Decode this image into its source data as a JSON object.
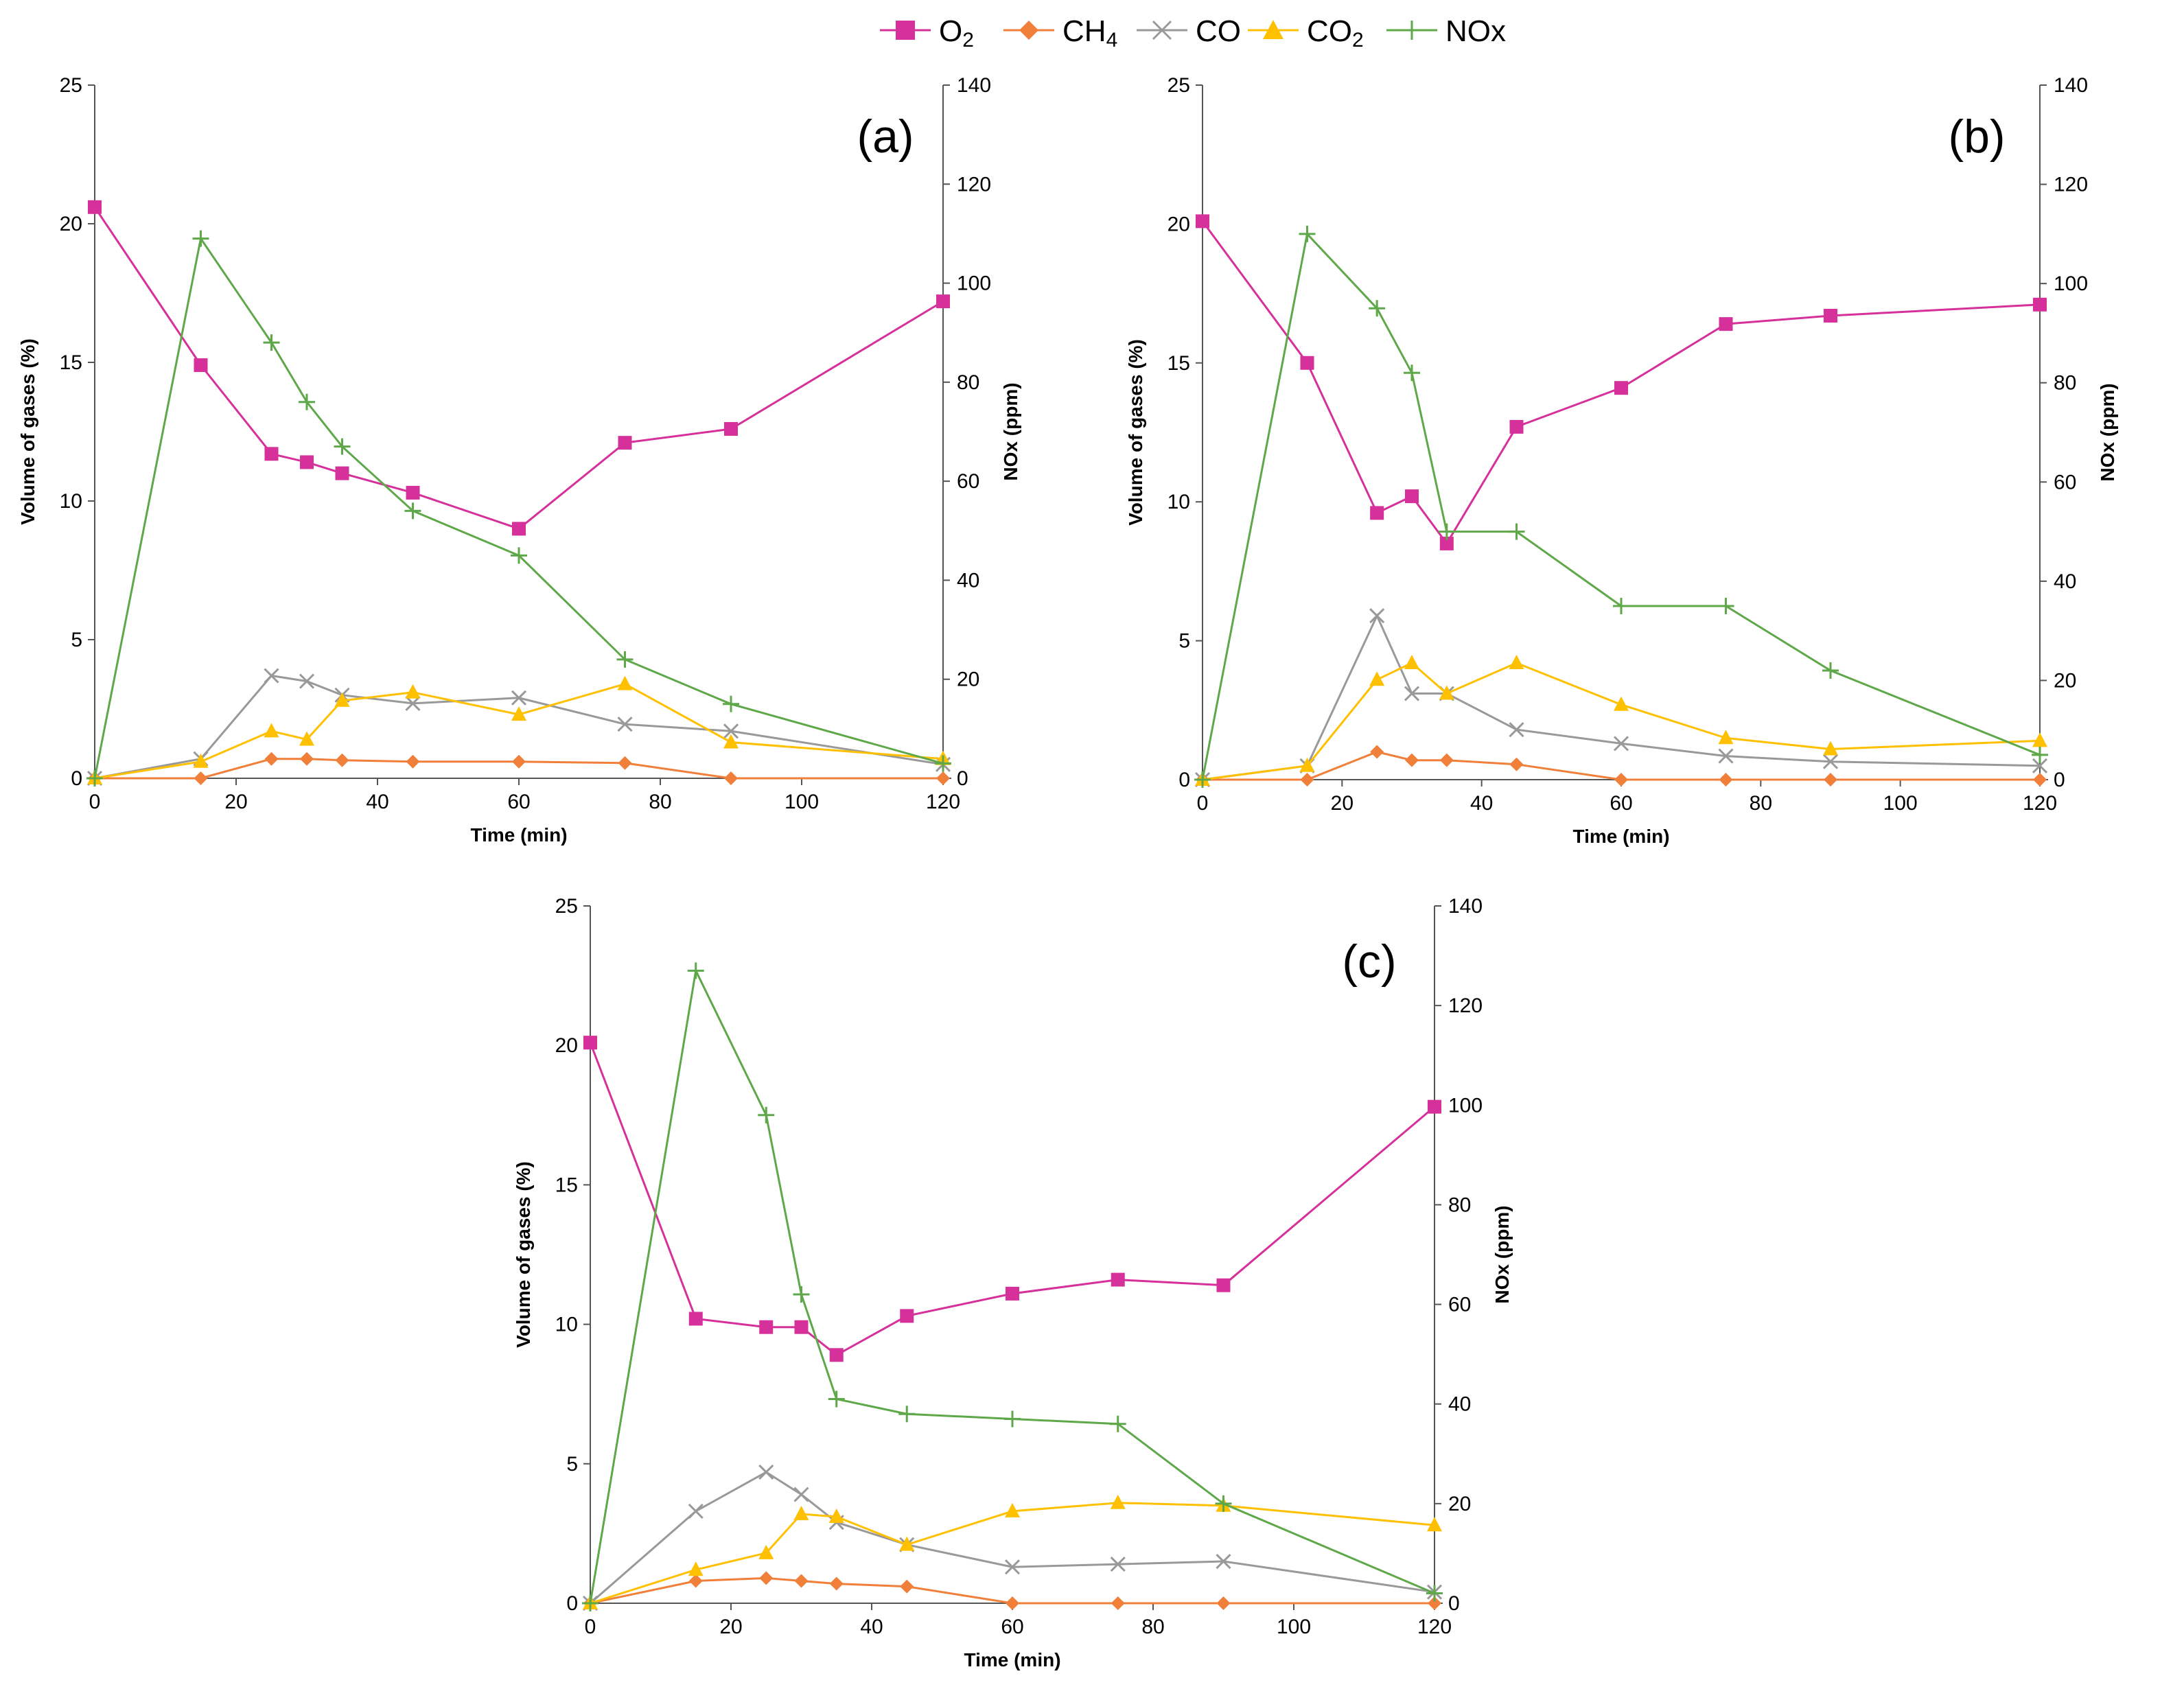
{
  "legend": {
    "o2": {
      "base": "O",
      "sub": "2"
    },
    "ch4": {
      "base": "CH",
      "sub": "4"
    },
    "co": "CO",
    "co2": {
      "base": "CO",
      "sub": "2"
    },
    "nox": "NOx"
  },
  "colors": {
    "o2": "#d6309a",
    "ch4": "#f07f3a",
    "co": "#999999",
    "co2": "#ffc000",
    "nox": "#5fa84a"
  },
  "chart_data": [
    {
      "type": "line",
      "panel": "(a)",
      "xlabel": "Time (min)",
      "ylabel": "Volume of gases (%)",
      "y2label": "NOx (ppm)",
      "xlim": [
        0,
        120
      ],
      "ylim": [
        0,
        25
      ],
      "y2lim": [
        0,
        140
      ],
      "xticks": [
        "0",
        "20",
        "40",
        "60",
        "80",
        "100",
        "120"
      ],
      "yticks": [
        "0",
        "5",
        "10",
        "15",
        "20",
        "25"
      ],
      "y2ticks": [
        "0",
        "20",
        "40",
        "60",
        "80",
        "100",
        "120",
        "140"
      ],
      "series": [
        {
          "name": "O2",
          "axis": "left",
          "x": [
            0,
            15,
            25,
            30,
            35,
            45,
            60,
            75,
            90,
            120
          ],
          "values": [
            20.6,
            14.9,
            11.7,
            11.4,
            11.0,
            10.3,
            9.0,
            12.1,
            12.6,
            17.2
          ]
        },
        {
          "name": "CH4",
          "axis": "left",
          "x": [
            0,
            15,
            25,
            30,
            35,
            45,
            60,
            75,
            90,
            120
          ],
          "values": [
            0,
            0,
            0.7,
            0.7,
            0.65,
            0.6,
            0.6,
            0.55,
            0,
            0
          ]
        },
        {
          "name": "CO",
          "axis": "left",
          "x": [
            0,
            15,
            25,
            30,
            35,
            45,
            60,
            75,
            90,
            120
          ],
          "values": [
            0,
            0.7,
            3.7,
            3.5,
            3.0,
            2.7,
            2.9,
            1.95,
            1.7,
            0.5
          ]
        },
        {
          "name": "CO2",
          "axis": "left",
          "x": [
            0,
            15,
            25,
            30,
            35,
            45,
            60,
            75,
            90,
            120
          ],
          "values": [
            0,
            0.6,
            1.7,
            1.4,
            2.8,
            3.1,
            2.3,
            3.4,
            1.3,
            0.7
          ]
        },
        {
          "name": "NOx",
          "axis": "right",
          "x": [
            0,
            15,
            25,
            30,
            35,
            45,
            60,
            75,
            90,
            120
          ],
          "values": [
            0,
            109,
            88,
            76,
            67,
            54,
            45,
            24,
            15,
            3
          ]
        }
      ]
    },
    {
      "type": "line",
      "panel": "(b)",
      "xlabel": "Time (min)",
      "ylabel": "Volume of gases (%)",
      "y2label": "NOx (ppm)",
      "xlim": [
        0,
        120
      ],
      "ylim": [
        0,
        25
      ],
      "y2lim": [
        0,
        140
      ],
      "xticks": [
        "0",
        "20",
        "40",
        "60",
        "80",
        "100",
        "120"
      ],
      "yticks": [
        "0",
        "5",
        "10",
        "15",
        "20",
        "25"
      ],
      "y2ticks": [
        "0",
        "20",
        "40",
        "60",
        "80",
        "100",
        "120",
        "140"
      ],
      "series": [
        {
          "name": "O2",
          "axis": "left",
          "x": [
            0,
            15,
            25,
            30,
            35,
            45,
            60,
            75,
            90,
            120
          ],
          "values": [
            20.1,
            15.0,
            9.6,
            10.2,
            8.5,
            12.7,
            14.1,
            16.4,
            16.7,
            17.1
          ]
        },
        {
          "name": "CH4",
          "axis": "left",
          "x": [
            0,
            15,
            25,
            30,
            35,
            45,
            60,
            75,
            90,
            120
          ],
          "values": [
            0,
            0,
            1.0,
            0.7,
            0.7,
            0.55,
            0,
            0,
            0,
            0
          ]
        },
        {
          "name": "CO",
          "axis": "left",
          "x": [
            0,
            15,
            25,
            30,
            35,
            45,
            60,
            75,
            90,
            120
          ],
          "values": [
            0,
            0.5,
            5.9,
            3.1,
            3.1,
            1.8,
            1.3,
            0.85,
            0.65,
            0.5
          ]
        },
        {
          "name": "CO2",
          "axis": "left",
          "x": [
            0,
            15,
            25,
            30,
            35,
            45,
            60,
            75,
            90,
            120
          ],
          "values": [
            0,
            0.5,
            3.6,
            4.2,
            3.1,
            4.2,
            2.7,
            1.5,
            1.1,
            1.4
          ]
        },
        {
          "name": "NOx",
          "axis": "right",
          "x": [
            0,
            15,
            25,
            30,
            35,
            45,
            60,
            75,
            90,
            120
          ],
          "values": [
            0,
            110,
            95,
            82,
            50,
            50,
            35,
            35,
            22,
            5
          ]
        }
      ]
    },
    {
      "type": "line",
      "panel": "(c)",
      "xlabel": "Time (min)",
      "ylabel": "Volume of gases (%)",
      "y2label": "NOx (ppm)",
      "xlim": [
        0,
        120
      ],
      "ylim": [
        0,
        25
      ],
      "y2lim": [
        0,
        140
      ],
      "xticks": [
        "0",
        "20",
        "40",
        "60",
        "80",
        "100",
        "120"
      ],
      "yticks": [
        "0",
        "5",
        "10",
        "15",
        "20",
        "25"
      ],
      "y2ticks": [
        "0",
        "20",
        "40",
        "60",
        "80",
        "100",
        "120",
        "140"
      ],
      "series": [
        {
          "name": "O2",
          "axis": "left",
          "x": [
            0,
            15,
            25,
            30,
            35,
            45,
            60,
            75,
            90,
            120
          ],
          "values": [
            20.1,
            10.2,
            9.9,
            9.9,
            8.9,
            10.3,
            11.1,
            11.6,
            11.4,
            17.8
          ]
        },
        {
          "name": "CH4",
          "axis": "left",
          "x": [
            0,
            15,
            25,
            30,
            35,
            45,
            60,
            75,
            90,
            120
          ],
          "values": [
            0,
            0.8,
            0.9,
            0.8,
            0.7,
            0.6,
            0,
            0,
            0,
            0
          ]
        },
        {
          "name": "CO",
          "axis": "left",
          "x": [
            0,
            15,
            25,
            30,
            35,
            45,
            60,
            75,
            90,
            120
          ],
          "values": [
            0,
            3.3,
            4.7,
            3.9,
            2.9,
            2.1,
            1.3,
            1.4,
            1.5,
            0.4
          ]
        },
        {
          "name": "CO2",
          "axis": "left",
          "x": [
            0,
            15,
            25,
            30,
            35,
            45,
            60,
            75,
            90,
            120
          ],
          "values": [
            0,
            1.2,
            1.8,
            3.2,
            3.1,
            2.1,
            3.3,
            3.6,
            3.5,
            2.8
          ]
        },
        {
          "name": "NOx",
          "axis": "right",
          "x": [
            0,
            15,
            25,
            30,
            35,
            45,
            60,
            75,
            90,
            120
          ],
          "values": [
            0,
            127,
            98,
            62,
            41,
            38,
            37,
            36,
            20,
            2
          ]
        }
      ]
    }
  ]
}
